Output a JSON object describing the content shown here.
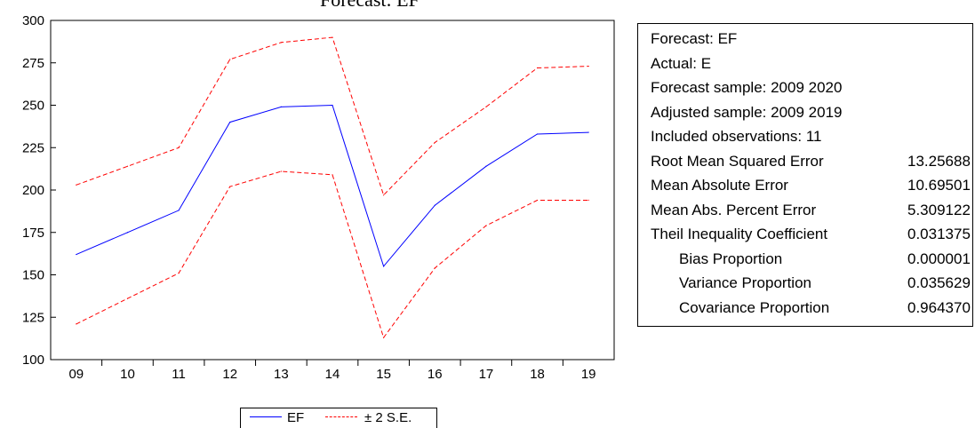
{
  "title_fragment": "Forecast: EF",
  "chart_data": {
    "type": "line",
    "categories": [
      "09",
      "10",
      "11",
      "12",
      "13",
      "14",
      "15",
      "16",
      "17",
      "18",
      "19"
    ],
    "series": [
      {
        "name": "EF",
        "color": "#0000ff",
        "style": "solid",
        "values": [
          162,
          175,
          188,
          240,
          249,
          250,
          155,
          191,
          214,
          233,
          234
        ]
      },
      {
        "name": "± 2 S.E.",
        "color": "#ff0000",
        "style": "dashed",
        "values": [
          203,
          214,
          225,
          277,
          287,
          290,
          197,
          228,
          249,
          272,
          273
        ]
      },
      {
        "name": "",
        "color": "#ff0000",
        "style": "dashed",
        "values": [
          121,
          136,
          151,
          202,
          211,
          209,
          113,
          154,
          179,
          194,
          194
        ]
      }
    ],
    "ylim": [
      100,
      300
    ],
    "yticks": [
      100,
      125,
      150,
      175,
      200,
      225,
      250,
      275,
      300
    ],
    "grid": false,
    "legend_position": "bottom"
  },
  "stats": [
    {
      "label": "Forecast: EF",
      "value": ""
    },
    {
      "label": "Actual: E",
      "value": ""
    },
    {
      "label": "Forecast sample: 2009 2020",
      "value": ""
    },
    {
      "label": "Adjusted sample: 2009 2019",
      "value": ""
    },
    {
      "label": "Included observations: 11",
      "value": ""
    },
    {
      "label": "Root Mean Squared Error",
      "value": "13.25688"
    },
    {
      "label": "Mean Absolute Error",
      "value": "10.69501"
    },
    {
      "label": "Mean Abs. Percent Error",
      "value": "5.309122"
    },
    {
      "label": "Theil Inequality Coefficient",
      "value": "0.031375"
    },
    {
      "label": "Bias Proportion",
      "value": "0.000001",
      "indent": true
    },
    {
      "label": "Variance Proportion",
      "value": "0.035629",
      "indent": true
    },
    {
      "label": "Covariance Proportion",
      "value": "0.964370",
      "indent": true
    }
  ],
  "legend": {
    "items": [
      "EF",
      "± 2 S.E."
    ]
  }
}
